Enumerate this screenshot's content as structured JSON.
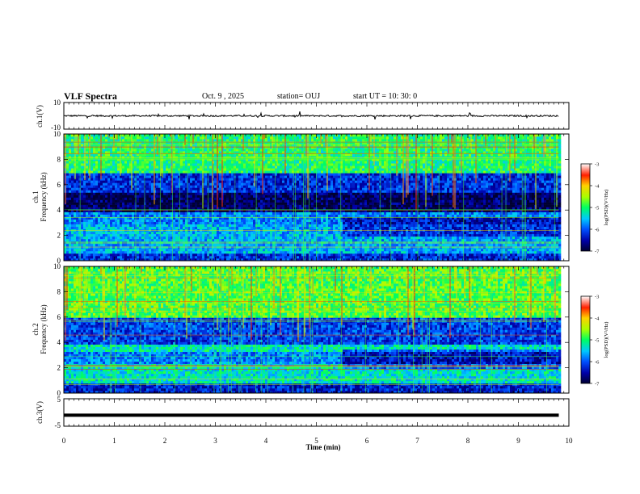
{
  "header": {
    "title": "VLF Spectra",
    "date": "Oct. 9 , 2025",
    "station": "station= OUJ",
    "start": "start UT =  10: 30: 0"
  },
  "chart_data": [
    {
      "type": "line",
      "panel": "ch1-waveform",
      "ylabel": "ch.1(V)",
      "ylim": [
        -10,
        10
      ],
      "yticks": [
        "10",
        "-10"
      ],
      "xlim": [
        0,
        10
      ],
      "series": [
        {
          "name": "ch.1",
          "approx_level": 0,
          "approx_amplitude": 1
        }
      ]
    },
    {
      "type": "heatmap",
      "panel": "ch1-spectrogram",
      "ylabel_line1": "ch.1",
      "ylabel_line2": "Frequency (kHz)",
      "ylim": [
        0,
        10
      ],
      "yticks": [
        "0",
        "2",
        "4",
        "6",
        "8",
        "10"
      ],
      "xlim": [
        0,
        10
      ],
      "data_end_min": 9.8,
      "bands": [
        {
          "from": 0.0,
          "to": 0.6,
          "level": -6.2
        },
        {
          "from": 0.6,
          "to": 2.8,
          "level": -5.6
        },
        {
          "from": 2.8,
          "to": 3.8,
          "level": -5.8
        },
        {
          "from": 3.8,
          "to": 5.4,
          "level": -6.8
        },
        {
          "from": 5.4,
          "to": 7.0,
          "level": -6.2
        },
        {
          "from": 7.0,
          "to": 10.0,
          "level": -5.0
        }
      ],
      "colorbar": {
        "label": "log(PSD)(V²/Hz)",
        "min": -7,
        "max": -3,
        "ticks": [
          "-3",
          "-4",
          "-5",
          "-6",
          "-7"
        ]
      }
    },
    {
      "type": "heatmap",
      "panel": "ch2-spectrogram",
      "ylabel_line1": "ch.2",
      "ylabel_line2": "Frequency (kHz)",
      "ylim": [
        0,
        10
      ],
      "yticks": [
        "0",
        "2",
        "4",
        "6",
        "8",
        "10"
      ],
      "xlim": [
        0,
        10
      ],
      "data_end_min": 9.8,
      "bands": [
        {
          "from": 0.0,
          "to": 0.8,
          "level": -6.3
        },
        {
          "from": 0.8,
          "to": 2.4,
          "level": -5.3
        },
        {
          "from": 2.4,
          "to": 3.2,
          "level": -5.8
        },
        {
          "from": 3.2,
          "to": 3.8,
          "level": -5.3
        },
        {
          "from": 3.8,
          "to": 6.0,
          "level": -6.1
        },
        {
          "from": 6.0,
          "to": 10.0,
          "level": -4.8
        }
      ],
      "colorbar": {
        "label": "log(PSD)(V²/Hz)",
        "min": -7,
        "max": -3,
        "ticks": [
          "-3",
          "-4",
          "-5",
          "-6",
          "-7"
        ]
      }
    },
    {
      "type": "line",
      "panel": "ch3-waveform",
      "ylabel": "ch.3(V)",
      "ylim": [
        -5,
        5
      ],
      "yticks": [
        "5",
        "-5"
      ],
      "xlim": [
        0,
        10
      ],
      "series": [
        {
          "name": "ch.3",
          "approx_level": -1
        }
      ]
    }
  ],
  "xaxis": {
    "label": "Time (min)",
    "ticks": [
      "0",
      "1",
      "2",
      "3",
      "4",
      "5",
      "6",
      "7",
      "8",
      "9",
      "10"
    ]
  }
}
